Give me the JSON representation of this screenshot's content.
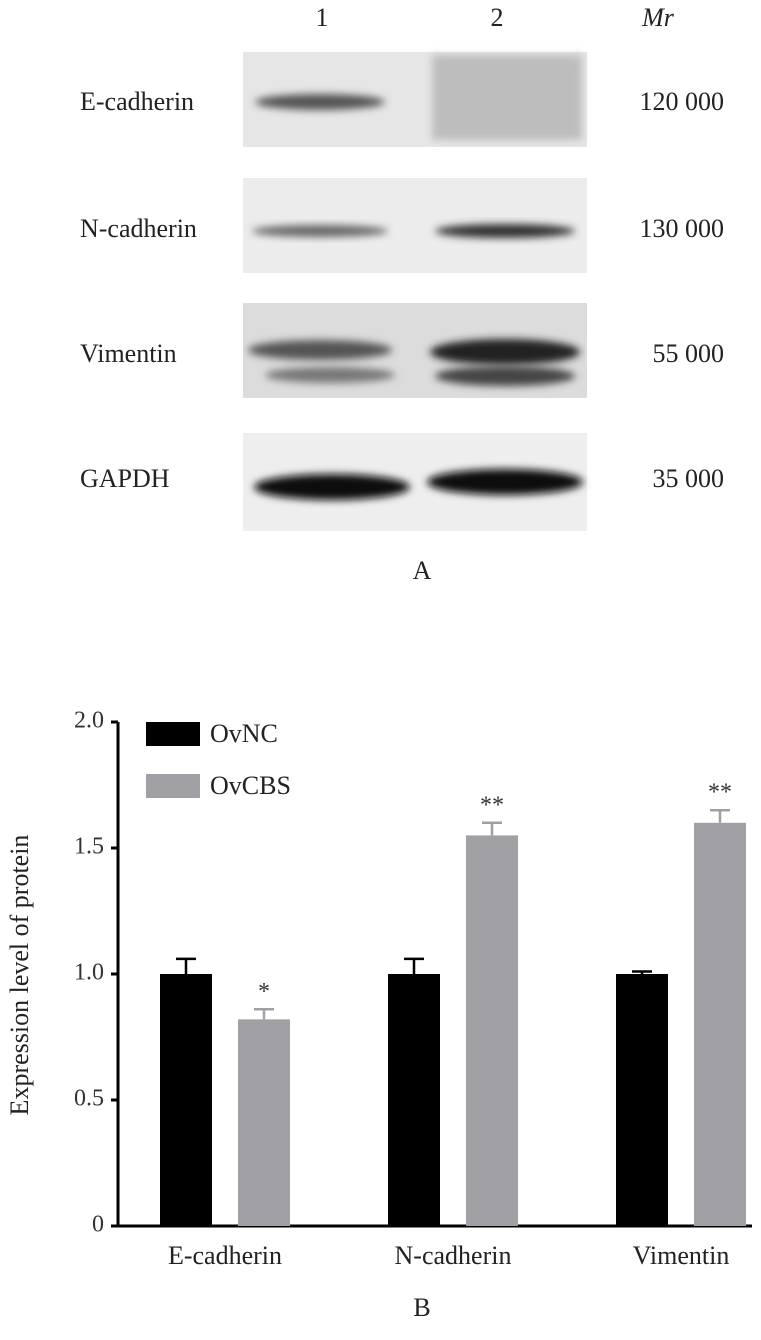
{
  "blot": {
    "lanes": [
      "1",
      "2"
    ],
    "mr_header": "Mr",
    "rows": [
      {
        "protein": "E-cadherin",
        "mr": "120 000"
      },
      {
        "protein": "N-cadherin",
        "mr": "130 000"
      },
      {
        "protein": "Vimentin",
        "mr": "55 000"
      },
      {
        "protein": "GAPDH",
        "mr": "35 000"
      }
    ],
    "panel_label": "A"
  },
  "chart_data": {
    "type": "bar",
    "panel_label": "B",
    "ylabel": "Expression level of protein",
    "categories": [
      "E-cadherin",
      "N-cadherin",
      "Vimentin"
    ],
    "series": [
      {
        "name": "OvNC",
        "color": "#000000",
        "values": [
          1.0,
          1.0,
          1.0
        ],
        "errors": [
          0.06,
          0.06,
          0.01
        ]
      },
      {
        "name": "OvCBS",
        "color": "#a0a0a4",
        "values": [
          0.82,
          1.55,
          1.6
        ],
        "errors": [
          0.04,
          0.05,
          0.05
        ],
        "annotations": [
          "*",
          "**",
          "**"
        ]
      }
    ],
    "ylim": [
      0,
      2.0
    ],
    "yticks": [
      0,
      {
        "value": 0.5,
        "label": "0.5"
      },
      {
        "value": 1.0,
        "label": "1.0"
      },
      {
        "value": 1.5,
        "label": "1.5"
      },
      {
        "value": 2.0,
        "label": "2.0"
      }
    ],
    "legend": "upper left"
  }
}
